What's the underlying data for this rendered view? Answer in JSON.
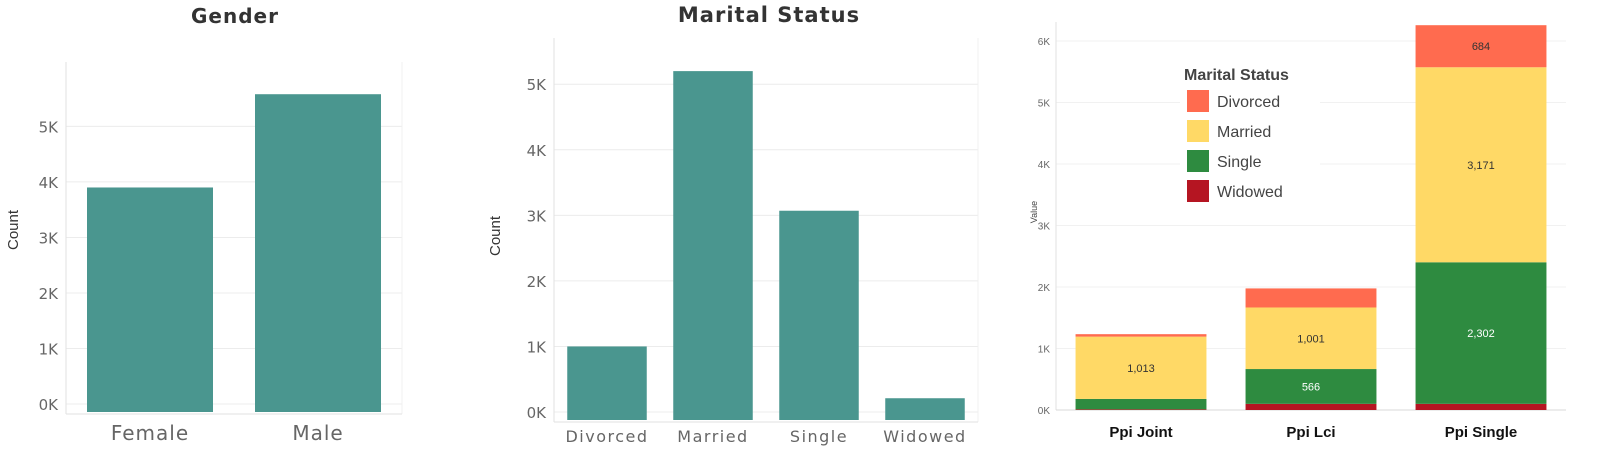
{
  "colors": {
    "teal": "#4a968f",
    "grid": "#ececec",
    "axis_text": "#666666",
    "divorced": "#ff6b4f",
    "married": "#ffd966",
    "single": "#2e8b40",
    "widowed": "#b51522"
  },
  "chart_data": [
    {
      "type": "bar",
      "title": "Gender",
      "xlabel": "",
      "ylabel": "Count",
      "ylim": [
        0,
        5800
      ],
      "yticks": [
        0,
        1000,
        2000,
        3000,
        4000,
        5000
      ],
      "ytick_labels": [
        "0K",
        "1K",
        "2K",
        "3K",
        "4K",
        "5K"
      ],
      "categories": [
        "Female",
        "Male"
      ],
      "values": [
        3900,
        5580
      ]
    },
    {
      "type": "bar",
      "title": "Marital Status",
      "xlabel": "",
      "ylabel": "Count",
      "ylim": [
        0,
        5400
      ],
      "yticks": [
        0,
        1000,
        2000,
        3000,
        4000,
        5000
      ],
      "ytick_labels": [
        "0K",
        "1K",
        "2K",
        "3K",
        "4K",
        "5K"
      ],
      "categories": [
        "Divorced",
        "Married",
        "Single",
        "Widowed"
      ],
      "values": [
        1000,
        5200,
        3070,
        210
      ]
    },
    {
      "type": "bar",
      "stacked": true,
      "title": "",
      "xlabel": "",
      "ylabel": "Value",
      "ylim": [
        0,
        6300
      ],
      "yticks": [
        0,
        1000,
        2000,
        3000,
        4000,
        5000,
        6000
      ],
      "ytick_labels": [
        "0K",
        "1K",
        "2K",
        "3K",
        "4K",
        "5K",
        "6K"
      ],
      "categories": [
        "Ppi Joint",
        "Ppi Lci",
        "Ppi Single"
      ],
      "legend_title": "Marital Status",
      "legend_position": "top-left",
      "series": [
        {
          "name": "Widowed",
          "color_key": "widowed",
          "values": [
            10,
            100,
            100
          ],
          "labels": [
            "",
            "",
            ""
          ]
        },
        {
          "name": "Single",
          "color_key": "single",
          "values": [
            170,
            566,
            2302
          ],
          "labels": [
            "",
            "566",
            "2,302"
          ]
        },
        {
          "name": "Married",
          "color_key": "married",
          "values": [
            1013,
            1001,
            3171
          ],
          "labels": [
            "1,013",
            "1,001",
            "3,171"
          ]
        },
        {
          "name": "Divorced",
          "color_key": "divorced",
          "values": [
            40,
            310,
            684
          ],
          "labels": [
            "",
            "",
            "684"
          ]
        }
      ],
      "legend_order": [
        "Divorced",
        "Married",
        "Single",
        "Widowed"
      ]
    }
  ]
}
